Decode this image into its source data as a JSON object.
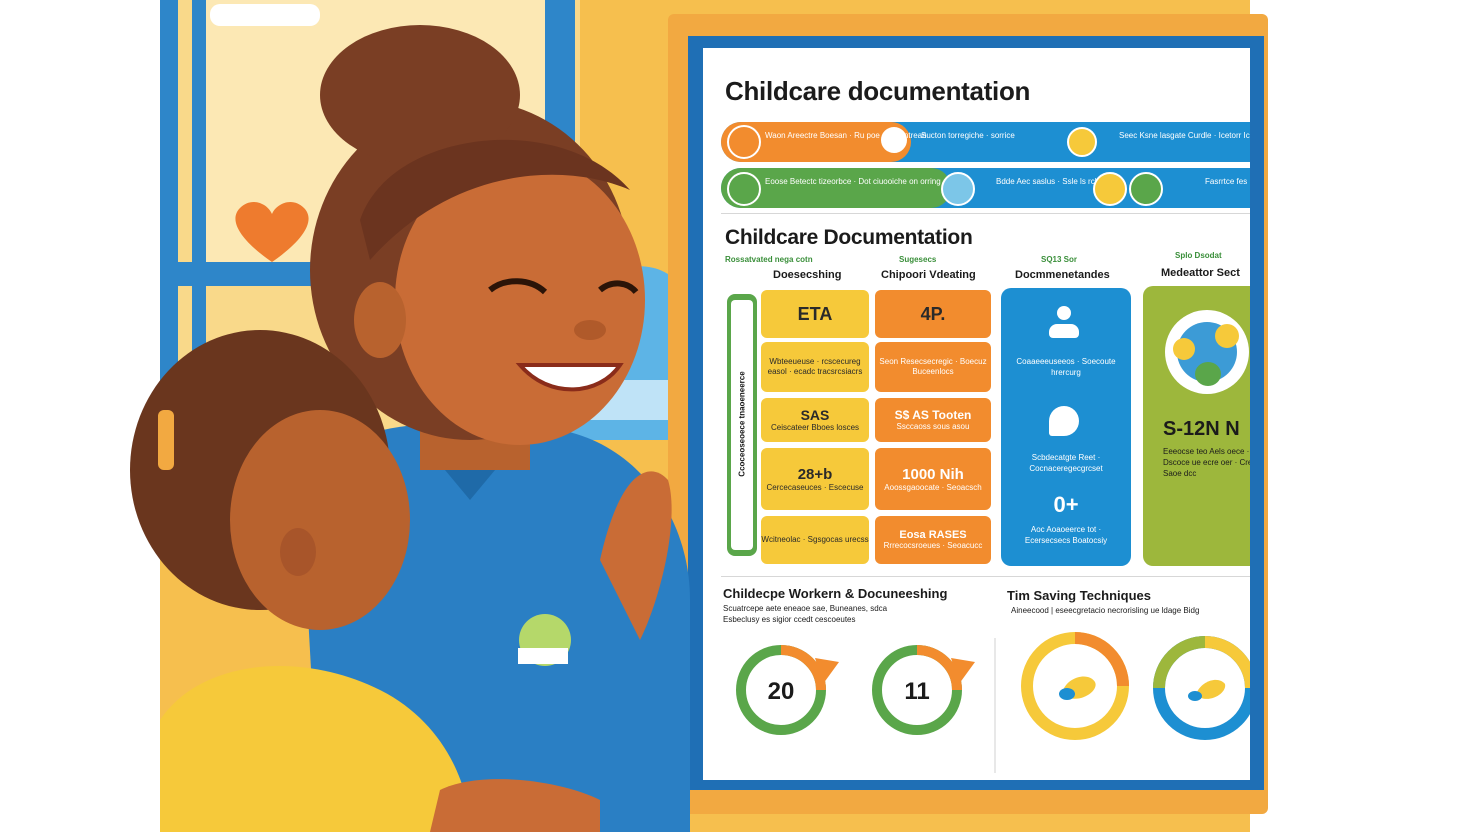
{
  "screen": {
    "title": "Childcare documentation",
    "banners": [
      {
        "text": "Waon Areectre Boesan · Ru poe docuentrean",
        "mid": "Sucton torregiche · sorrice",
        "right": "Seec Ksne lasgate Curdle · Icetorr Icoon"
      },
      {
        "text": "Eoose Betectc tizeorbce · Dot ciuooiche on orring",
        "mid": "Bdde Aec saslus · Ssle ls rcbene",
        "right": "Fasrrtce fes · Ssde eecers"
      }
    ],
    "section_title": "Childcare Documentation",
    "side_label": "Ccoceoseoece tnaoeneerce",
    "columns": [
      {
        "eyebrow": "Rossatvated nega cotn",
        "label": "Doesecshing"
      },
      {
        "eyebrow": "Sugesecs",
        "label": "Chipoori Vdeating"
      },
      {
        "eyebrow": "SQ13 Sor",
        "label": "Docmmenetandes"
      },
      {
        "eyebrow": "Splo Dsodat",
        "label": "Medeattor Sect"
      }
    ],
    "yellow_tiles": [
      {
        "big": "ETA",
        "small": ""
      },
      {
        "big": "",
        "small": "Wbteeueuse · rcscecureg easol · ecadc tracsrcsiacrs"
      },
      {
        "big": "SAS",
        "small": "Ceiscateer Bboes losces"
      },
      {
        "big": "28+b",
        "small": "Cercecaseuces · Escecuse"
      },
      {
        "big": "",
        "small": "Wcitneolac · Sgsgocas urecss"
      }
    ],
    "orange_tiles": [
      {
        "big": "4P.",
        "small": ""
      },
      {
        "big": "",
        "small": "Seon Resecsecregic · Boecuz Buceenlocs"
      },
      {
        "big": "S$ AS Tooten",
        "small": "Ssccaoss sous asou"
      },
      {
        "big": "1000 Nih",
        "small": "Aoossgaoocate · Seoacsch"
      },
      {
        "big": "Eosa RASES",
        "small": "Rrrecocsroeues · Seoacucc"
      }
    ],
    "blue_panel": {
      "line1": "Coaaeeeuseeos · Soecoute hrercurg",
      "line2": "Scbdecatgte Reet · Cocnaceregecgrcset",
      "stat": "0+",
      "line3": "Aoc Aoaoeerce tot · Ecersecsecs Boatocsiy"
    },
    "green_panel": {
      "stat": "S-12N N",
      "text": "Eeeocse teo Aels oece · Dscoce ue ecre oer · Crec eke Saoe dcc"
    },
    "bottom_left": {
      "title": "Childecpe Workern & Docuneeshing",
      "line1": "Scuatrcepe aete eneaoe sae, Buneanes, sdca",
      "line2": "Esbeclusy es sigior ccedt cescoeutes",
      "rings": [
        "20",
        "11"
      ]
    },
    "bottom_right": {
      "title": "Tim Saving Techniques",
      "line1": "Aineecood | eseecgretacio necrorisling ue ldage Bidg",
      "rings": [
        "",
        ""
      ]
    }
  },
  "colors": {
    "orange": "#F28C2E",
    "blue": "#1D8FD2",
    "green": "#5AA64A",
    "yellow": "#F6C93A",
    "lime": "#9DB73C",
    "frame": "#F2A941",
    "wall": "#F7C04E"
  },
  "icons": [
    "heart-icon",
    "person-icon",
    "bird-icon",
    "ring-chart-icon",
    "lightbulb-badge-icon"
  ]
}
